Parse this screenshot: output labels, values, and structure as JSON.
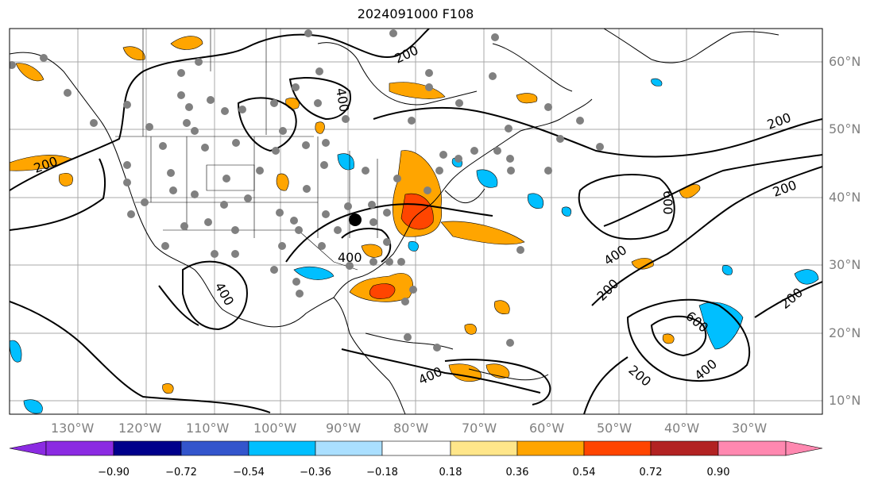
{
  "title": "2024091000 F108",
  "lon_labels": [
    "130°W",
    "120°W",
    "110°W",
    "100°W",
    "90°W",
    "80°W",
    "70°W",
    "60°W",
    "50°W",
    "40°W",
    "30°W"
  ],
  "lat_labels": [
    "60°N",
    "50°N",
    "40°N",
    "30°N",
    "20°N",
    "10°N"
  ],
  "colorbar": {
    "ticks": [
      "−0.90",
      "−0.72",
      "−0.54",
      "−0.36",
      "−0.18",
      "0.18",
      "0.36",
      "0.54",
      "0.72",
      "0.90"
    ],
    "colors": [
      "#8b2be2",
      "#00008b",
      "#3355cc",
      "#00bfff",
      "#aadfff",
      "#ffffff",
      "#ffe68a",
      "#ffa500",
      "#ff4500",
      "#b22222",
      "#ff88b0"
    ]
  },
  "contour_labels": [
    "200",
    "200",
    "200",
    "200",
    "200",
    "200",
    "200",
    "400",
    "400",
    "400",
    "400",
    "400",
    "400",
    "600",
    "600"
  ],
  "colors": {
    "gray_lines": "#a9a9a9",
    "station_dots": "#808080",
    "contour": "#000000"
  }
}
